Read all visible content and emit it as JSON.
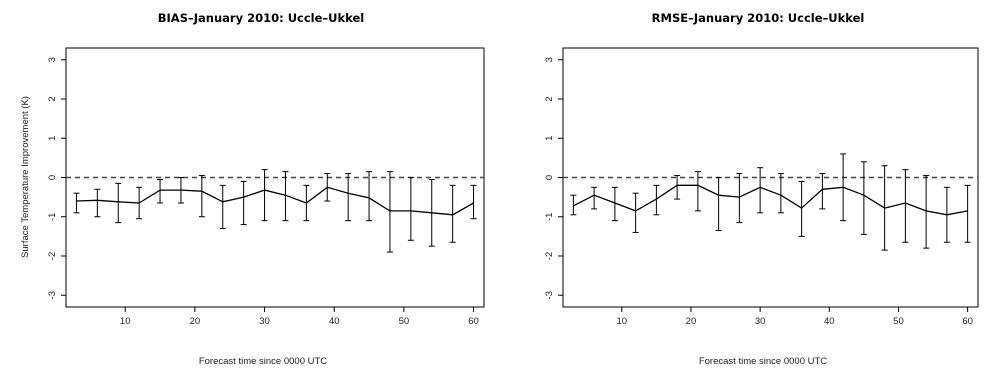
{
  "chart_data": [
    {
      "type": "line",
      "title": "BIAS–January 2010: Uccle–Ukkel",
      "xlabel": "Forecast time since 0000 UTC",
      "ylabel": "Surface Temperature Improvement (K)",
      "xlim": [
        1.5,
        61.5
      ],
      "ylim": [
        -3.3,
        3.3
      ],
      "xticks": [
        "10",
        "20",
        "30",
        "40",
        "50",
        "60"
      ],
      "yticks": [
        "-3",
        "-2",
        "-1",
        "0",
        "1",
        "2",
        "3"
      ],
      "reference_line": 0,
      "series": [
        {
          "x": [
            3,
            6,
            9,
            12,
            15,
            18,
            21,
            24,
            27,
            30,
            33,
            36,
            39,
            42,
            45,
            48,
            51,
            54,
            57,
            60
          ],
          "y": [
            -0.6,
            -0.58,
            -0.62,
            -0.65,
            -0.32,
            -0.32,
            -0.35,
            -0.62,
            -0.5,
            -0.32,
            -0.45,
            -0.65,
            -0.25,
            -0.4,
            -0.52,
            -0.85,
            -0.85,
            -0.9,
            -0.95,
            -0.65
          ],
          "err_low": [
            -0.9,
            -1.0,
            -1.15,
            -1.05,
            -0.65,
            -0.65,
            -1.0,
            -1.3,
            -1.2,
            -1.1,
            -1.1,
            -1.1,
            -0.6,
            -1.1,
            -1.1,
            -1.9,
            -1.6,
            -1.75,
            -1.65,
            -1.05
          ],
          "err_high": [
            -0.4,
            -0.3,
            -0.15,
            -0.25,
            -0.05,
            0.0,
            0.05,
            -0.2,
            -0.1,
            0.2,
            0.15,
            -0.2,
            0.1,
            0.1,
            0.15,
            0.15,
            0.0,
            -0.05,
            -0.2,
            -0.2
          ]
        }
      ]
    },
    {
      "type": "line",
      "title": "RMSE–January 2010: Uccle–Ukkel",
      "xlabel": "Forecast time since 0000 UTC",
      "ylabel": "",
      "xlim": [
        1.5,
        61.5
      ],
      "ylim": [
        -3.3,
        3.3
      ],
      "xticks": [
        "10",
        "20",
        "30",
        "40",
        "50",
        "60"
      ],
      "yticks": [
        "-3",
        "-2",
        "-1",
        "0",
        "1",
        "2",
        "3"
      ],
      "reference_line": 0,
      "series": [
        {
          "x": [
            3,
            6,
            9,
            12,
            15,
            18,
            21,
            24,
            27,
            30,
            33,
            36,
            39,
            42,
            45,
            48,
            51,
            54,
            57,
            60
          ],
          "y": [
            -0.72,
            -0.45,
            -0.65,
            -0.85,
            -0.55,
            -0.2,
            -0.2,
            -0.45,
            -0.5,
            -0.25,
            -0.45,
            -0.78,
            -0.3,
            -0.25,
            -0.45,
            -0.78,
            -0.65,
            -0.85,
            -0.95,
            -0.85
          ],
          "err_low": [
            -0.95,
            -0.8,
            -1.1,
            -1.4,
            -0.95,
            -0.55,
            -0.85,
            -1.35,
            -1.15,
            -0.9,
            -0.9,
            -1.5,
            -0.8,
            -1.1,
            -1.45,
            -1.85,
            -1.65,
            -1.8,
            -1.65,
            -1.65
          ],
          "err_high": [
            -0.45,
            -0.25,
            -0.25,
            -0.4,
            -0.2,
            0.05,
            0.15,
            0.0,
            0.1,
            0.25,
            0.1,
            -0.1,
            0.1,
            0.6,
            0.4,
            0.3,
            0.2,
            0.05,
            -0.25,
            -0.2
          ]
        }
      ]
    }
  ]
}
